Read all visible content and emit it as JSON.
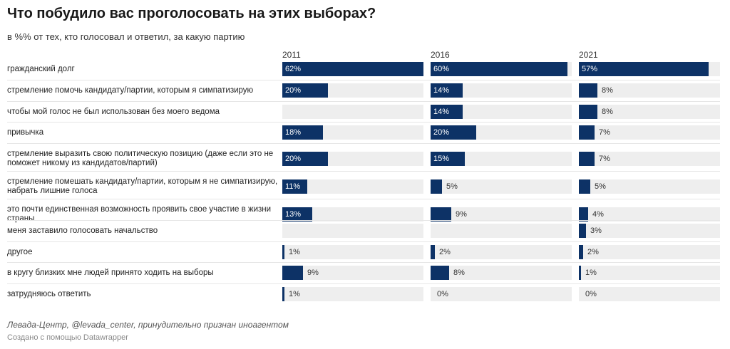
{
  "title": "Что побудило вас проголосовать на этих выборах?",
  "subtitle": "в %% от тех, кто голосовал и ответил, за какую партию",
  "source": "Левада-Центр, @levada_center, принудительно признан иноагентом",
  "credit": "Создано с помощью Datawrapper",
  "colors": {
    "bar": "#0d3266",
    "track": "#eeeeee"
  },
  "chart_data": {
    "type": "bar",
    "orientation": "horizontal",
    "unit": "%",
    "xlim": [
      0,
      62
    ],
    "categories": [
      "гражданский долг",
      "стремление помочь кандидату/партии, которым я симпатизирую",
      "чтобы мой голос не был использован без моего ведома",
      "привычка",
      "стремление выразить свою политическую позицию (даже если это не поможет никому из кандидатов/партий)",
      "стремление помешать кандидату/партии, которым я не симпатизирую, набрать лишние голоса",
      "это почти единственная возможность проявить свое участие в жизни страны",
      "меня заставило голосовать начальство",
      "другое",
      "в кругу близких мне людей принято ходить на выборы",
      "затрудняюсь ответить"
    ],
    "series": [
      {
        "name": "2011",
        "values": [
          62,
          20,
          null,
          18,
          20,
          11,
          13,
          null,
          1,
          9,
          1
        ]
      },
      {
        "name": "2016",
        "values": [
          60,
          14,
          14,
          20,
          15,
          5,
          9,
          null,
          2,
          8,
          0
        ]
      },
      {
        "name": "2021",
        "values": [
          57,
          8,
          8,
          7,
          7,
          5,
          4,
          3,
          2,
          1,
          0
        ]
      }
    ]
  }
}
